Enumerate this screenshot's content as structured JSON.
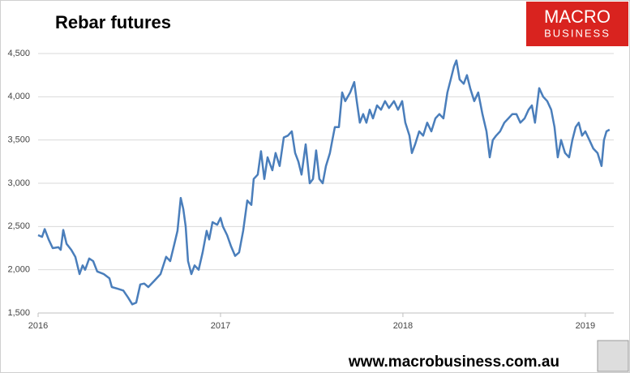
{
  "chart_data": {
    "type": "line",
    "title": "Rebar futures",
    "logo": {
      "top": "MACRO",
      "bottom": "BUSINESS"
    },
    "footer": "www.macrobusiness.com.au",
    "color": "#4a7ebb",
    "grid": true,
    "xlim": [
      2016,
      2019.156
    ],
    "xticks": [
      2016,
      2017,
      2018,
      2019
    ],
    "ylim": [
      1500,
      4500
    ],
    "yticks": [
      {
        "value": 1500,
        "label": "1,500"
      },
      {
        "value": 2000,
        "label": "2,000"
      },
      {
        "value": 2500,
        "label": "2,500"
      },
      {
        "value": 3000,
        "label": "3,000"
      },
      {
        "value": 3500,
        "label": "3,500"
      },
      {
        "value": 4000,
        "label": "4,000"
      },
      {
        "value": 4500,
        "label": "4,500"
      }
    ],
    "x": [
      2016.0,
      2016.022,
      2016.036,
      2016.058,
      2016.08,
      2016.111,
      2016.124,
      2016.138,
      2016.156,
      2016.182,
      2016.204,
      2016.227,
      2016.244,
      2016.258,
      2016.28,
      2016.302,
      2016.324,
      2016.36,
      2016.391,
      2016.404,
      2016.436,
      2016.467,
      2016.493,
      2016.516,
      2016.538,
      2016.56,
      2016.582,
      2016.604,
      2016.636,
      2016.671,
      2016.702,
      2016.724,
      2016.747,
      2016.764,
      2016.782,
      2016.796,
      2016.809,
      2016.822,
      2016.84,
      2016.858,
      2016.88,
      2016.902,
      2016.924,
      2016.938,
      2016.956,
      2016.982,
      2017.0,
      2017.013,
      2017.036,
      2017.058,
      2017.08,
      2017.102,
      2017.124,
      2017.147,
      2017.169,
      2017.182,
      2017.204,
      2017.222,
      2017.24,
      2017.258,
      2017.284,
      2017.302,
      2017.324,
      2017.347,
      2017.369,
      2017.391,
      2017.409,
      2017.427,
      2017.444,
      2017.467,
      2017.489,
      2017.507,
      2017.524,
      2017.542,
      2017.56,
      2017.578,
      2017.6,
      2017.613,
      2017.627,
      2017.649,
      2017.667,
      2017.684,
      2017.711,
      2017.733,
      2017.747,
      2017.764,
      2017.782,
      2017.8,
      2017.818,
      2017.836,
      2017.858,
      2017.88,
      2017.902,
      2017.924,
      2017.951,
      2017.973,
      2017.996,
      2018.013,
      2018.036,
      2018.049,
      2018.067,
      2018.089,
      2018.111,
      2018.133,
      2018.156,
      2018.178,
      2018.2,
      2018.222,
      2018.244,
      2018.262,
      2018.28,
      2018.293,
      2018.311,
      2018.333,
      2018.351,
      2018.369,
      2018.391,
      2018.413,
      2018.436,
      2018.458,
      2018.476,
      2018.493,
      2018.511,
      2018.533,
      2018.556,
      2018.578,
      2018.6,
      2018.622,
      2018.644,
      2018.667,
      2018.689,
      2018.707,
      2018.724,
      2018.747,
      2018.769,
      2018.791,
      2018.813,
      2018.831,
      2018.849,
      2018.867,
      2018.889,
      2018.911,
      2018.929,
      2018.947,
      2018.964,
      2018.982,
      2019.0,
      2019.022,
      2019.044,
      2019.067,
      2019.089,
      2019.102,
      2019.116,
      2019.133
    ],
    "values": [
      2400,
      2380,
      2470,
      2350,
      2250,
      2260,
      2230,
      2460,
      2300,
      2230,
      2150,
      1950,
      2050,
      2000,
      2130,
      2100,
      1980,
      1950,
      1900,
      1800,
      1780,
      1760,
      1680,
      1600,
      1620,
      1830,
      1840,
      1800,
      1870,
      1950,
      2150,
      2100,
      2300,
      2450,
      2830,
      2700,
      2500,
      2100,
      1950,
      2050,
      2000,
      2200,
      2450,
      2350,
      2550,
      2520,
      2600,
      2500,
      2400,
      2270,
      2160,
      2200,
      2450,
      2800,
      2750,
      3050,
      3100,
      3370,
      3050,
      3300,
      3150,
      3350,
      3200,
      3530,
      3550,
      3600,
      3350,
      3250,
      3100,
      3450,
      3000,
      3050,
      3380,
      3050,
      3000,
      3200,
      3350,
      3500,
      3650,
      3650,
      4050,
      3950,
      4050,
      4170,
      3950,
      3700,
      3800,
      3700,
      3850,
      3750,
      3900,
      3850,
      3950,
      3870,
      3950,
      3850,
      3950,
      3700,
      3550,
      3350,
      3450,
      3600,
      3550,
      3700,
      3600,
      3750,
      3800,
      3750,
      4050,
      4200,
      4350,
      4420,
      4200,
      4150,
      4250,
      4100,
      3950,
      4050,
      3800,
      3600,
      3300,
      3500,
      3550,
      3600,
      3700,
      3750,
      3800,
      3800,
      3700,
      3750,
      3850,
      3900,
      3700,
      4100,
      4000,
      3950,
      3850,
      3650,
      3300,
      3500,
      3350,
      3300,
      3500,
      3650,
      3700,
      3550,
      3600,
      3500,
      3400,
      3350,
      3200,
      3500,
      3600,
      3620
    ]
  }
}
